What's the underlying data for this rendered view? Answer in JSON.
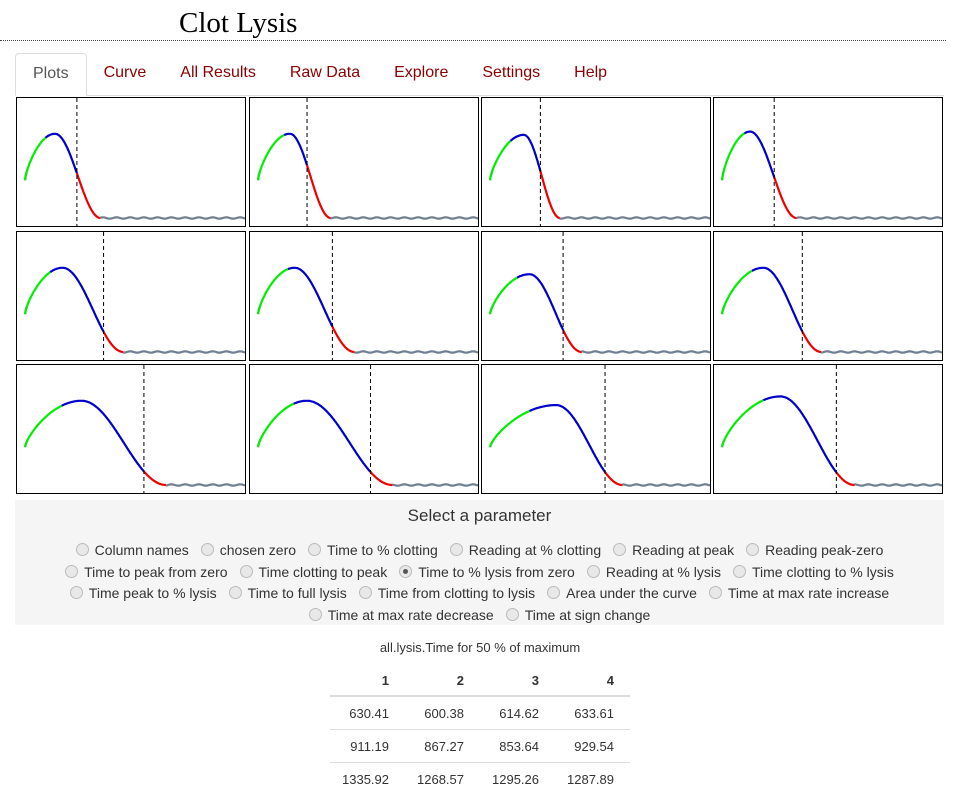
{
  "app": {
    "title": "Clot Lysis"
  },
  "tabs": [
    {
      "label": "Plots",
      "active": true
    },
    {
      "label": "Curve"
    },
    {
      "label": "All Results"
    },
    {
      "label": "Raw Data"
    },
    {
      "label": "Explore"
    },
    {
      "label": "Settings"
    },
    {
      "label": "Help"
    }
  ],
  "colors": {
    "clotting": "#00ee00",
    "peak_to_lysis": "#0000cc",
    "lysis": "#ee0000",
    "baseline": "#708090",
    "tab_text": "#8b0000"
  },
  "parameter_panel": {
    "heading": "Select a parameter",
    "rows": [
      [
        "Column names",
        "chosen zero",
        "Time to % clotting",
        "Reading at % clotting",
        "Reading at peak",
        "Reading peak-zero"
      ],
      [
        "Time to peak from zero",
        "Time clotting to peak",
        "Time to % lysis from zero",
        "Reading at % lysis",
        "Time clotting to % lysis"
      ],
      [
        "Time peak to % lysis",
        "Time to full lysis",
        "Time from clotting to lysis",
        "Area under the curve",
        "Time at max rate increase"
      ],
      [
        "Time at max rate decrease",
        "Time at sign change"
      ]
    ],
    "selected": "Time to % lysis from zero"
  },
  "results": {
    "caption": "all.lysis.Time for 50 % of maximum",
    "headers": [
      "1",
      "2",
      "3",
      "4"
    ],
    "rows": [
      [
        "630.41",
        "600.38",
        "614.62",
        "633.61"
      ],
      [
        "911.19",
        "867.27",
        "853.64",
        "929.54"
      ],
      [
        "1335.92",
        "1268.57",
        "1295.26",
        "1287.89"
      ]
    ]
  },
  "chart_data": {
    "type": "line",
    "xlim": [
      0,
      2400
    ],
    "ylim": [
      0,
      1
    ],
    "plots": [
      {
        "well": 1,
        "start": 85,
        "clot": 300,
        "peak": 400,
        "lysis50": 630.41,
        "full": 880,
        "y0": 0.35,
        "ypeak": 0.78
      },
      {
        "well": 2,
        "start": 85,
        "clot": 360,
        "peak": 420,
        "lysis50": 600.38,
        "full": 850,
        "y0": 0.35,
        "ypeak": 0.78
      },
      {
        "well": 3,
        "start": 85,
        "clot": 300,
        "peak": 440,
        "lysis50": 614.62,
        "full": 820,
        "y0": 0.35,
        "ypeak": 0.77
      },
      {
        "well": 4,
        "start": 85,
        "clot": 320,
        "peak": 380,
        "lysis50": 633.61,
        "full": 870,
        "y0": 0.35,
        "ypeak": 0.8
      },
      {
        "well": 5,
        "start": 85,
        "clot": 350,
        "peak": 480,
        "lysis50": 911.19,
        "full": 1120,
        "y0": 0.35,
        "ypeak": 0.78
      },
      {
        "well": 6,
        "start": 85,
        "clot": 400,
        "peak": 470,
        "lysis50": 867.27,
        "full": 1100,
        "y0": 0.35,
        "ypeak": 0.78
      },
      {
        "well": 7,
        "start": 85,
        "clot": 370,
        "peak": 500,
        "lysis50": 853.64,
        "full": 1050,
        "y0": 0.35,
        "ypeak": 0.72
      },
      {
        "well": 8,
        "start": 85,
        "clot": 400,
        "peak": 520,
        "lysis50": 929.54,
        "full": 1130,
        "y0": 0.35,
        "ypeak": 0.78
      },
      {
        "well": 9,
        "start": 85,
        "clot": 470,
        "peak": 680,
        "lysis50": 1335.92,
        "full": 1570,
        "y0": 0.35,
        "ypeak": 0.78
      },
      {
        "well": 10,
        "start": 85,
        "clot": 460,
        "peak": 600,
        "lysis50": 1268.57,
        "full": 1500,
        "y0": 0.35,
        "ypeak": 0.78
      },
      {
        "well": 11,
        "start": 85,
        "clot": 500,
        "peak": 780,
        "lysis50": 1295.26,
        "full": 1480,
        "y0": 0.35,
        "ypeak": 0.74
      },
      {
        "well": 12,
        "start": 85,
        "clot": 520,
        "peak": 700,
        "lysis50": 1287.89,
        "full": 1480,
        "y0": 0.35,
        "ypeak": 0.82
      }
    ]
  }
}
